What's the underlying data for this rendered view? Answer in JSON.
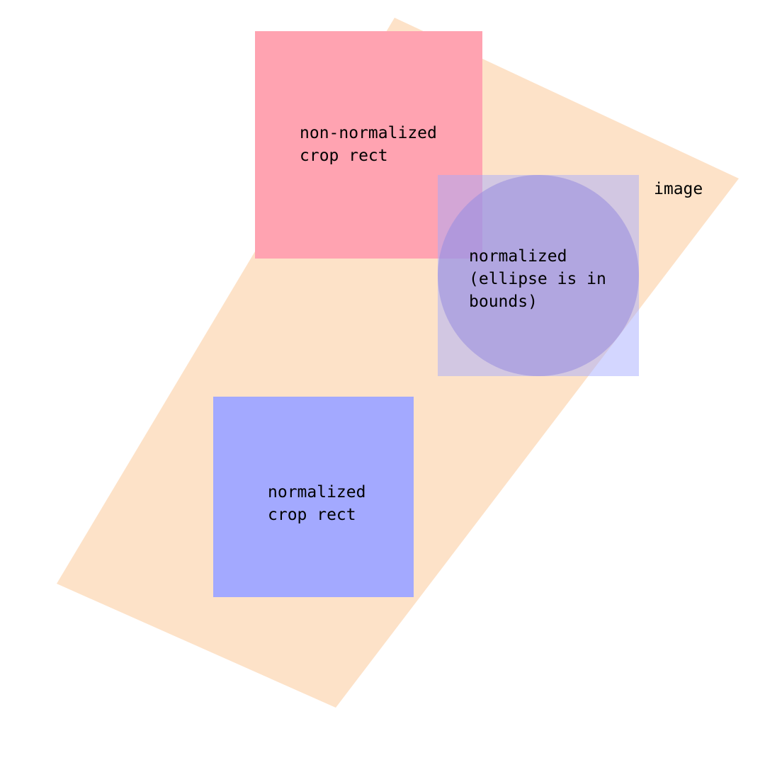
{
  "colors": {
    "image": "#fde2c8",
    "non_normalized_rect": "#ffa3b1",
    "normalized_rect": "#a3a9ff",
    "normalized_ellipse_rect": "#a3a9ff",
    "ellipse": "#9b8fe0",
    "text": "#000000"
  },
  "labels": {
    "image": "image",
    "non_normalized": [
      "non-normalized",
      "crop rect"
    ],
    "normalized_ellipse": [
      "normalized",
      "(ellipse is in",
      "bounds)"
    ],
    "normalized": [
      "normalized",
      "crop rect"
    ]
  }
}
